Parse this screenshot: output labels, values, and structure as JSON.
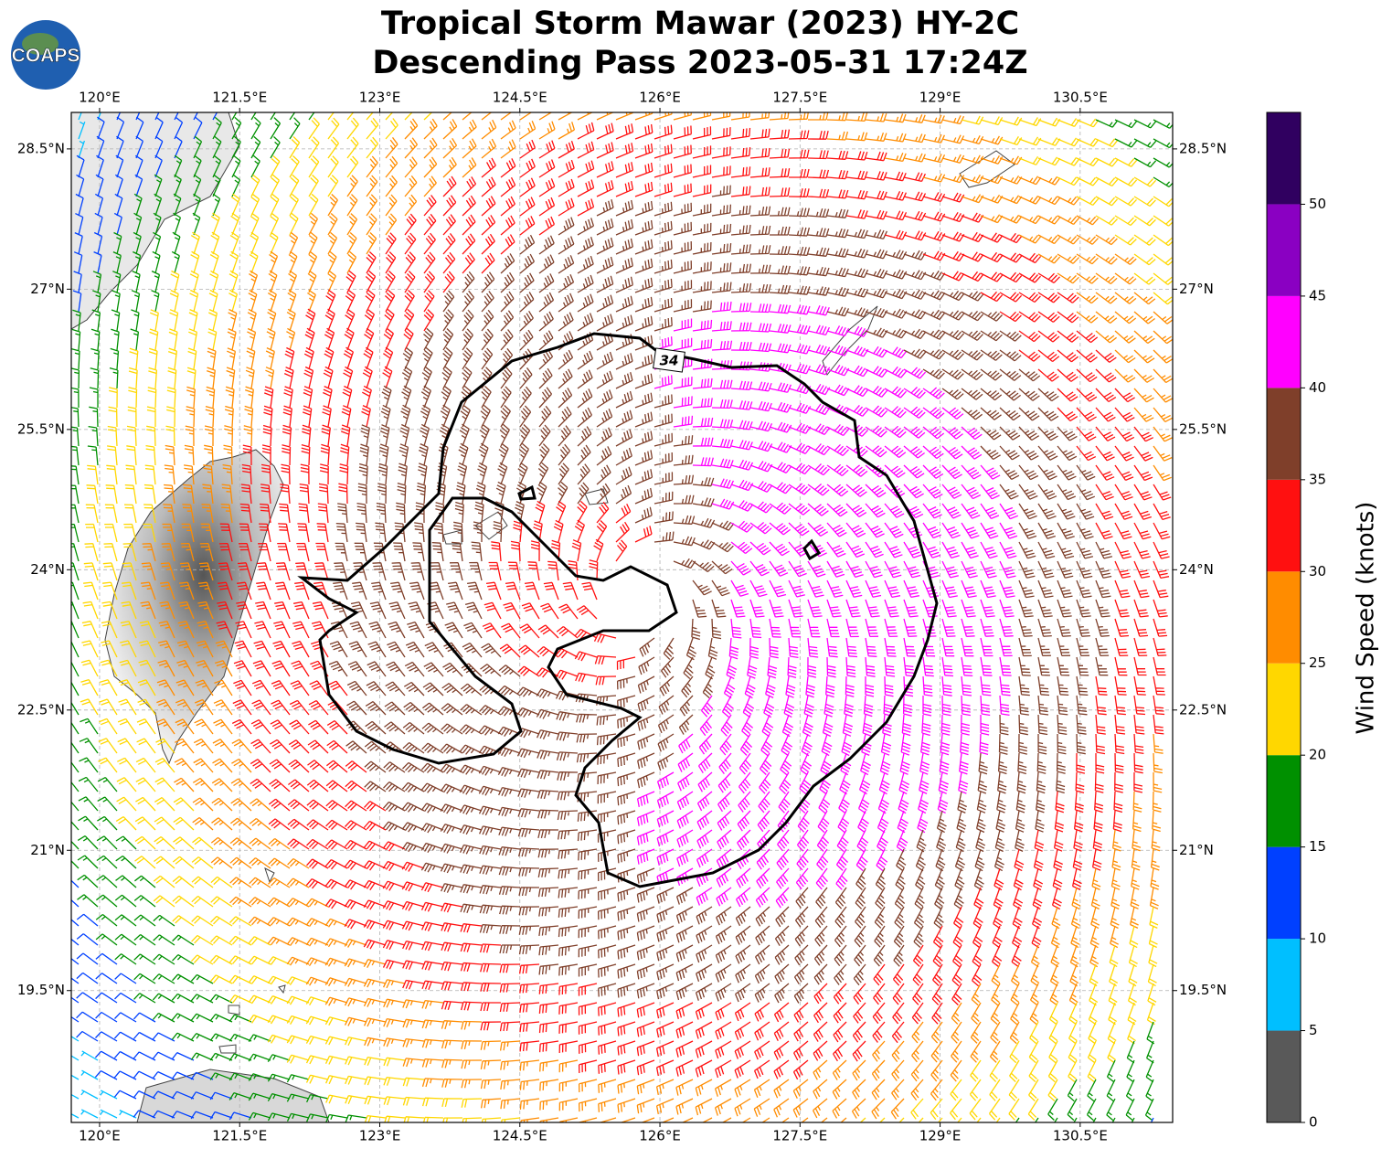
{
  "chart_data": {
    "type": "map",
    "logo": "COAPS",
    "title": "Tropical Storm Mawar (2023) HY-2C",
    "subtitle": "Descending Pass 2023-05-31 17:24Z",
    "xlim": [
      119.697,
      131.49
    ],
    "ylim": [
      18.09,
      28.89
    ],
    "xticks": [
      {
        "value": 120,
        "label": "120°E"
      },
      {
        "value": 121.5,
        "label": "121.5°E"
      },
      {
        "value": 123,
        "label": "123°E"
      },
      {
        "value": 124.5,
        "label": "124.5°E"
      },
      {
        "value": 126,
        "label": "126°E"
      },
      {
        "value": 127.5,
        "label": "127.5°E"
      },
      {
        "value": 129,
        "label": "129°E"
      },
      {
        "value": 130.5,
        "label": "130.5°E"
      }
    ],
    "yticks": [
      {
        "value": 19.5,
        "label": "19.5°N"
      },
      {
        "value": 21,
        "label": "21°N"
      },
      {
        "value": 22.5,
        "label": "22.5°N"
      },
      {
        "value": 24,
        "label": "24°N"
      },
      {
        "value": 25.5,
        "label": "25.5°N"
      },
      {
        "value": 27,
        "label": "27°N"
      },
      {
        "value": 28.5,
        "label": "28.5°N"
      }
    ],
    "grid": true,
    "contour_label": "34",
    "colorbar": {
      "label": "Wind Speed (knots)",
      "lim": [
        0,
        55
      ],
      "bounds": [
        0,
        5,
        10,
        15,
        20,
        25,
        30,
        35,
        40,
        45,
        50,
        55
      ],
      "colors": [
        "#595959",
        "#00bfff",
        "#0040ff",
        "#009000",
        "#ffd700",
        "#ff8c00",
        "#ff1010",
        "#7f3f2a",
        "#ff00ff",
        "#8a00c2",
        "#300060"
      ],
      "ticks": [
        0,
        5,
        10,
        15,
        20,
        25,
        30,
        35,
        40,
        45,
        50
      ]
    }
  }
}
